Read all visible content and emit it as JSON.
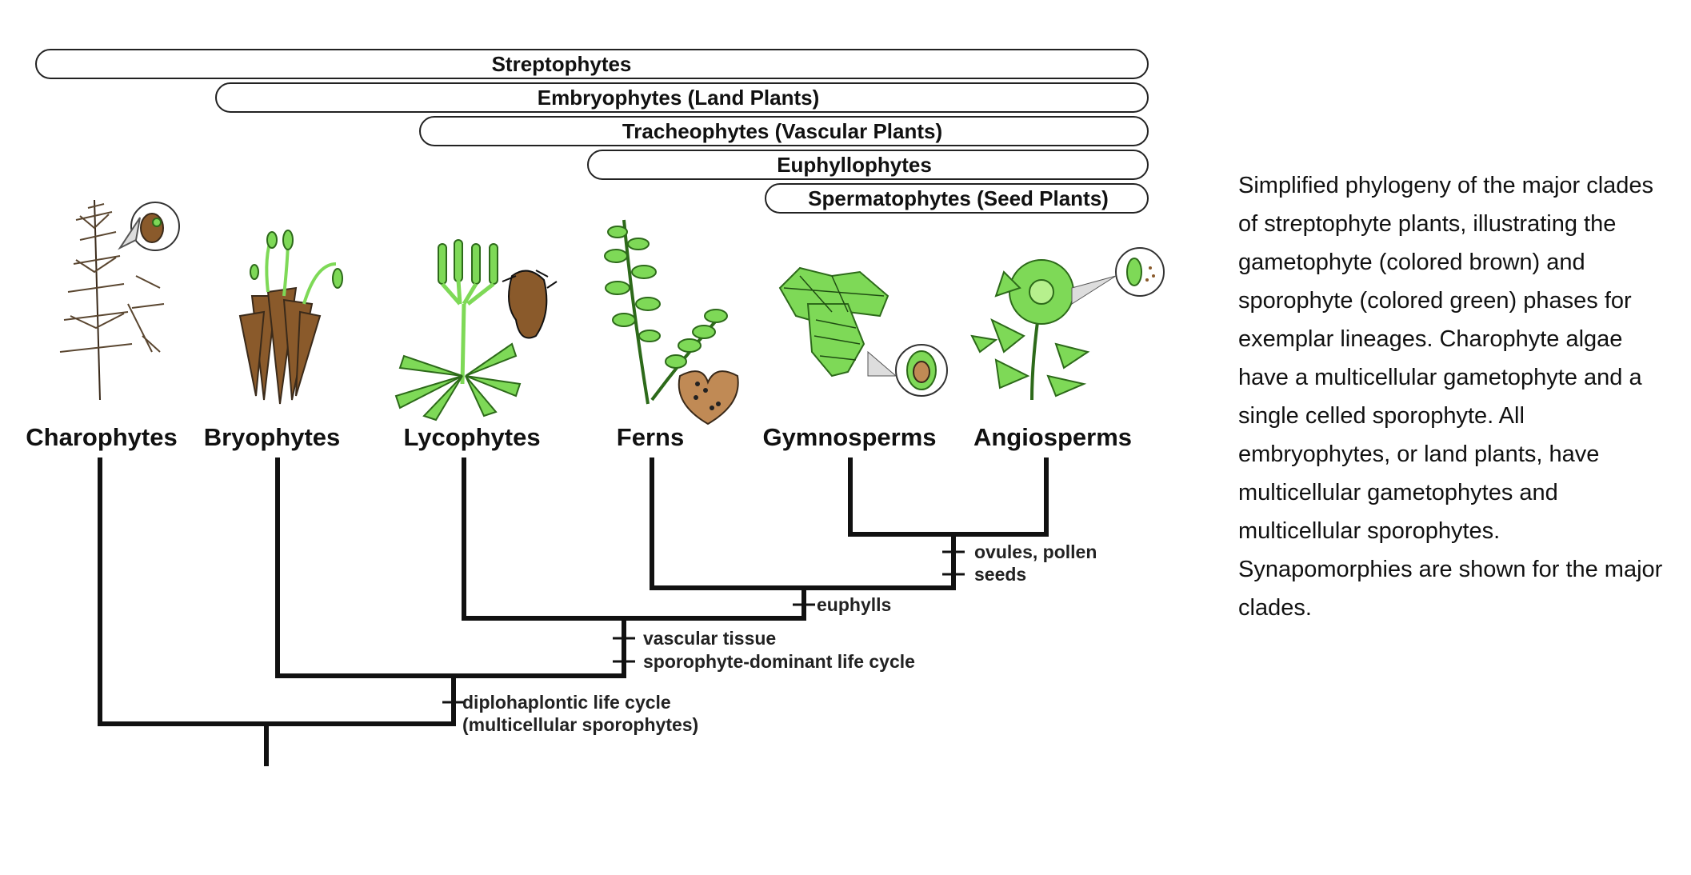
{
  "clades": [
    "Streptophytes",
    "Embryophytes (Land Plants)",
    "Tracheophytes (Vascular Plants)",
    "Euphyllophytes",
    "Spermatophytes (Seed Plants)"
  ],
  "taxa": [
    "Charophytes",
    "Bryophytes",
    "Lycophytes",
    "Ferns",
    "Gymnosperms",
    "Angiosperms"
  ],
  "synapomorphies": {
    "ovules_pollen": "ovules, pollen",
    "seeds": "seeds",
    "euphylls": "euphylls",
    "vascular_tissue": "vascular tissue",
    "sporophyte_dominant": "sporophyte-dominant life cycle",
    "diplohaplontic_line1": "diplohaplontic life cycle",
    "diplohaplontic_line2": "(multicellular sporophytes)"
  },
  "caption": "Simplified phylogeny of the major clades of streptophyte plants, illustrating the gametophyte (colored brown) and sporophyte (colored green) phases for exemplar lineages. Charophyte algae have a multicellular gametophyte and a single celled sporophyte. All embryophytes, or land plants, have multicellular gametophytes and multicellular sporophytes. Synapomorphies are shown for the major clades.",
  "colors": {
    "gametophyte": "#8a5a2b",
    "sporophyte": "#7ed957",
    "outline": "#111111"
  }
}
